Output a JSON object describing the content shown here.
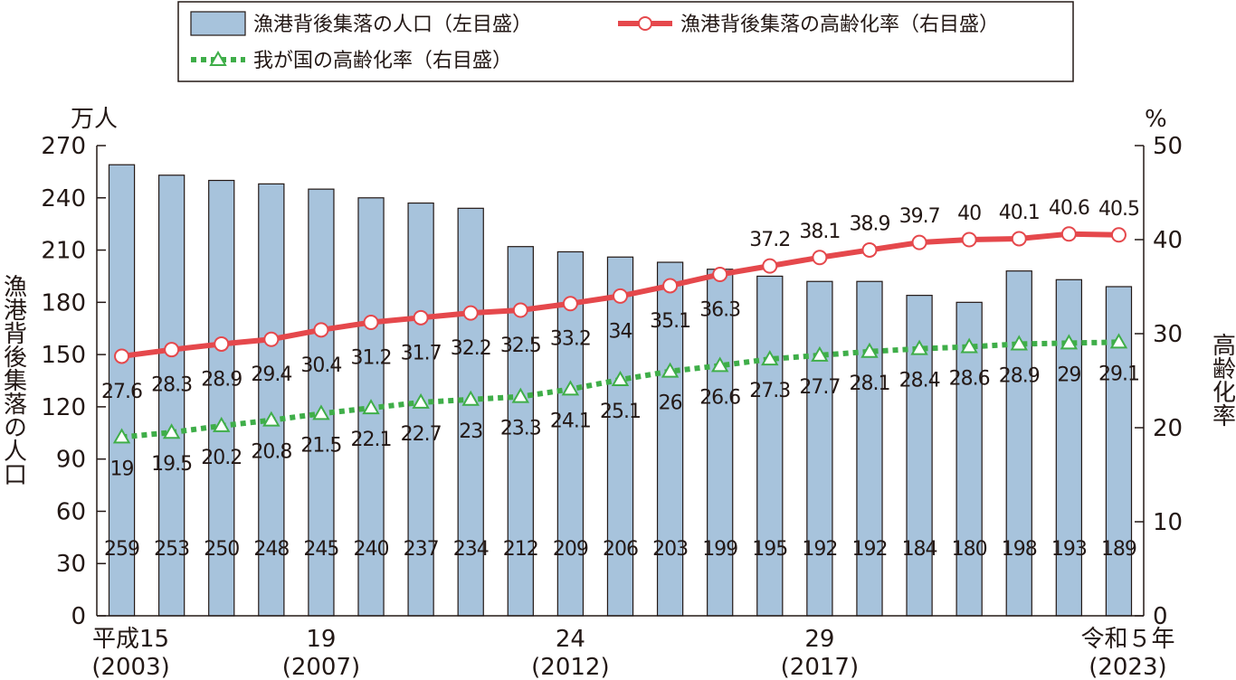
{
  "chart_data": {
    "type": "bar",
    "title": "",
    "legend": {
      "placement": "top",
      "items": [
        {
          "key": "population",
          "label": "漁港背後集落の人口（左目盛）"
        },
        {
          "key": "hamlet_rate",
          "label": "漁港背後集落の高齢化率（右目盛）"
        },
        {
          "key": "national_rate",
          "label": "我が国の高齢化率（右目盛）"
        }
      ]
    },
    "y_left": {
      "unit": "万人",
      "label": "漁港背後集落の人口",
      "range": [
        0,
        270
      ],
      "ticks": [
        "0",
        "30",
        "60",
        "90",
        "120",
        "150",
        "180",
        "210",
        "240",
        "270"
      ]
    },
    "y_right": {
      "unit": "%",
      "label": "高齢化率",
      "range": [
        0,
        50
      ],
      "ticks": [
        "0",
        "10",
        "20",
        "30",
        "40",
        "50"
      ]
    },
    "x_labels": [
      {
        "index": 0,
        "line1": "平成15",
        "line2": "(2003)"
      },
      {
        "index": 4,
        "line1": "19",
        "line2": "(2007)"
      },
      {
        "index": 9,
        "line1": "24",
        "line2": "(2012)"
      },
      {
        "index": 14,
        "line1": "29",
        "line2": "(2017)"
      },
      {
        "index": 20,
        "line1": "令和５年",
        "line2": "(2023)"
      }
    ],
    "categories": [
      "2003",
      "2004",
      "2005",
      "2006",
      "2007",
      "2008",
      "2009",
      "2010",
      "2011",
      "2012",
      "2013",
      "2014",
      "2015",
      "2016",
      "2017",
      "2018",
      "2019",
      "2020",
      "2021",
      "2022",
      "2023"
    ],
    "series": [
      {
        "name": "漁港背後集落の人口（左目盛）",
        "type": "bar",
        "axis": "left",
        "values": [
          259,
          253,
          250,
          248,
          245,
          240,
          237,
          234,
          212,
          209,
          206,
          203,
          199,
          195,
          192,
          192,
          184,
          180,
          198,
          193,
          189
        ]
      },
      {
        "name": "漁港背後集落の高齢化率（右目盛）",
        "type": "line",
        "axis": "right",
        "values": [
          27.6,
          28.3,
          28.9,
          29.4,
          30.4,
          31.2,
          31.7,
          32.2,
          32.5,
          33.2,
          34.0,
          35.1,
          36.3,
          37.2,
          38.1,
          38.9,
          39.7,
          40.0,
          40.1,
          40.6,
          40.5
        ]
      },
      {
        "name": "我が国の高齢化率（右目盛）",
        "type": "line",
        "axis": "right",
        "values": [
          19.0,
          19.5,
          20.2,
          20.8,
          21.5,
          22.1,
          22.7,
          23.0,
          23.3,
          24.1,
          25.1,
          26.0,
          26.6,
          27.3,
          27.7,
          28.1,
          28.4,
          28.6,
          28.9,
          29.0,
          29.1
        ]
      }
    ]
  },
  "colors": {
    "bar_fill": "#a7c3dc",
    "bar_stroke": "#231815",
    "hamlet_line": "#e5484c",
    "national_line": "#3fae49",
    "text": "#231815"
  }
}
